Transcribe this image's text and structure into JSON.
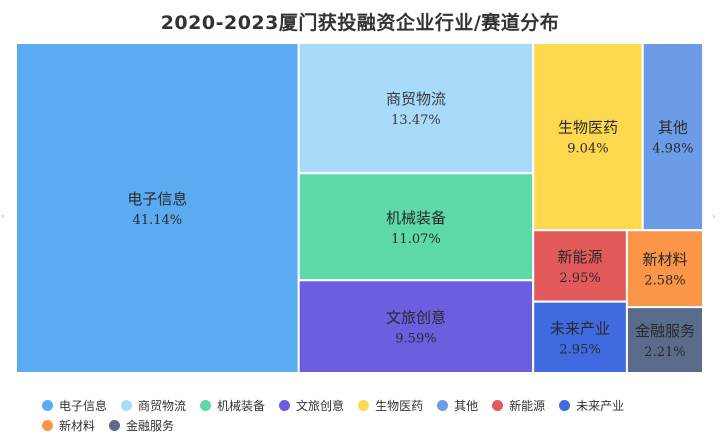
{
  "chart_data": {
    "type": "treemap",
    "title": "2020-2023厦门获投融资企业行业/赛道分布",
    "items": [
      {
        "name": "电子信息",
        "value": 41.14,
        "label": "41.14%",
        "color": "#5aabf2"
      },
      {
        "name": "商贸物流",
        "value": 13.47,
        "label": "13.47%",
        "color": "#a8dbf9"
      },
      {
        "name": "机械装备",
        "value": 11.07,
        "label": "11.07%",
        "color": "#5ed9a8"
      },
      {
        "name": "文旅创意",
        "value": 9.59,
        "label": "9.59%",
        "color": "#6b5fe0"
      },
      {
        "name": "生物医药",
        "value": 9.04,
        "label": "9.04%",
        "color": "#fdd94f"
      },
      {
        "name": "其他",
        "value": 4.98,
        "label": "4.98%",
        "color": "#6c9be8"
      },
      {
        "name": "新能源",
        "value": 2.95,
        "label": "2.95%",
        "color": "#e35a5a"
      },
      {
        "name": "未来产业",
        "value": 2.95,
        "label": "2.95%",
        "color": "#3f6ae0"
      },
      {
        "name": "新材料",
        "value": 2.58,
        "label": "2.58%",
        "color": "#fb9547"
      },
      {
        "name": "金融服务",
        "value": 2.21,
        "label": "2.21%",
        "color": "#5a6b8c"
      }
    ],
    "legend_position": "bottom"
  },
  "edge_marks": {
    "left": "‹",
    "right": "›"
  }
}
